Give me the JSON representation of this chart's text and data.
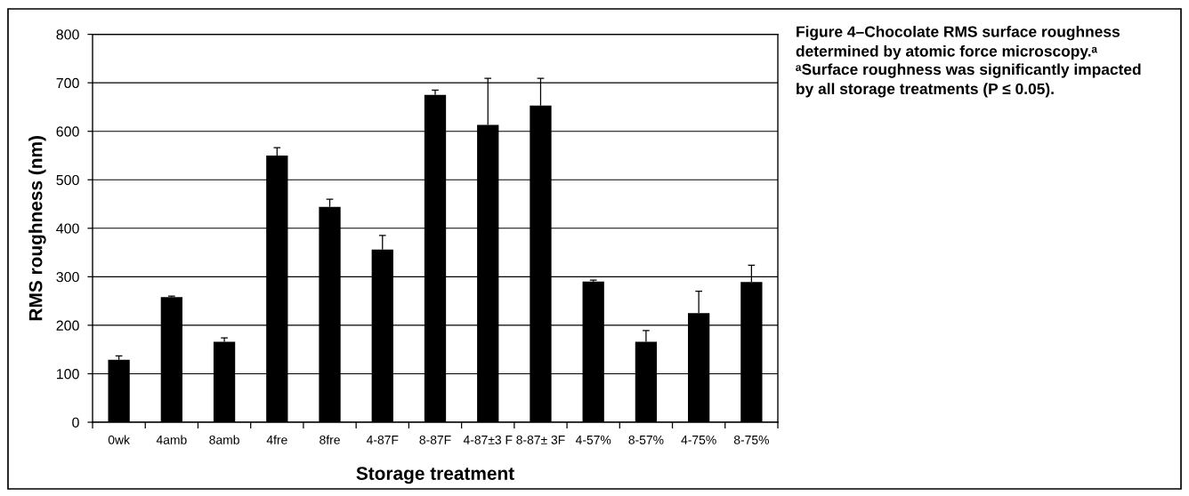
{
  "chart_data": {
    "type": "bar",
    "title": "Figure 4–Chocolate RMS surface roughness determined by atomic force microscopy.ᵃ",
    "annotations": [
      "ᵃSurface roughness was significantly impacted by all storage treatments (P ≤ 0.05)."
    ],
    "xlabel": "Storage treatment",
    "ylabel": "RMS roughness (nm)",
    "categories": [
      "0wk",
      "4amb",
      "8amb",
      "4fre",
      "8fre",
      "4-87F",
      "8-87F",
      "4-87±3 F",
      "8-87± 3F",
      "4-57%",
      "8-57%",
      "4-75%",
      "8-75%"
    ],
    "values": [
      129,
      258,
      166,
      550,
      444,
      356,
      675,
      613,
      653,
      290,
      166,
      225,
      289
    ],
    "errors": [
      [
        129,
        137
      ],
      [
        258,
        260
      ],
      [
        166,
        174
      ],
      [
        550,
        566
      ],
      [
        444,
        460
      ],
      [
        356,
        385
      ],
      [
        675,
        685
      ],
      [
        613,
        709
      ],
      [
        653,
        709
      ],
      [
        290,
        293
      ],
      [
        166,
        189
      ],
      [
        225,
        270
      ],
      [
        289,
        324
      ]
    ],
    "color": "#000000",
    "ylim": [
      0,
      800
    ],
    "yticks": [
      0,
      100,
      200,
      300,
      400,
      500,
      600,
      700,
      800
    ],
    "grid": "y"
  }
}
